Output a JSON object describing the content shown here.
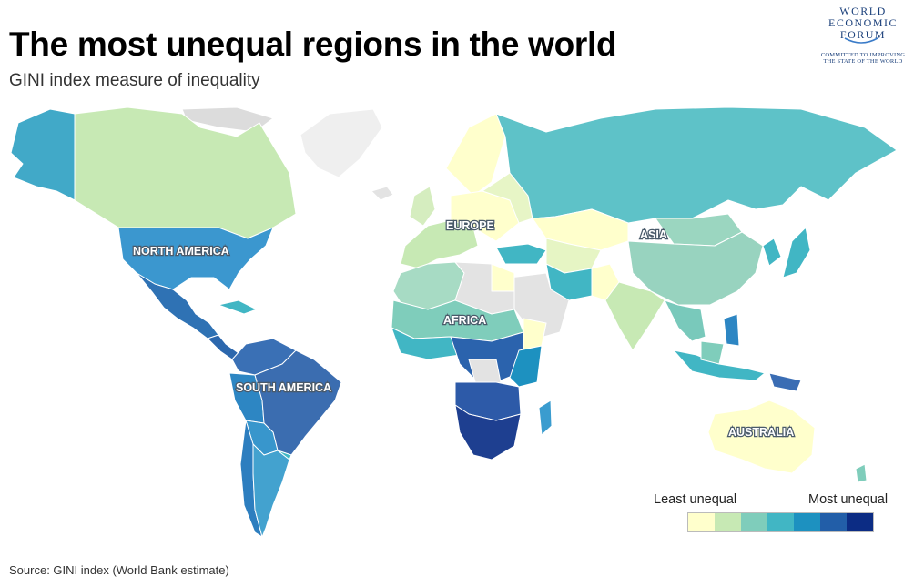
{
  "header": {
    "title": "The most unequal regions in the world",
    "subtitle": "GINI index measure of inequality"
  },
  "logo": {
    "line1": "WORLD",
    "line2": "ECONOMIC",
    "line3": "FORUM",
    "tagline": "COMMITTED TO IMPROVING THE STATE OF THE WORLD"
  },
  "map": {
    "region_labels": {
      "north_america": "NORTH AMERICA",
      "south_america": "SOUTH AMERICA",
      "europe": "EUROPE",
      "africa": "AFRICA",
      "asia": "ASIA",
      "australia": "AUSTRALIA"
    },
    "colors": {
      "no_data": "#e3e3e3",
      "scale": [
        "#ffffcc",
        "#c7e9b4",
        "#7fcdbb",
        "#41b6c4",
        "#1d91c0",
        "#225ea8",
        "#0c2c84"
      ]
    }
  },
  "legend": {
    "low_label": "Least unequal",
    "high_label": "Most unequal"
  },
  "source": "Source:  GINI index (World Bank estimate)"
}
